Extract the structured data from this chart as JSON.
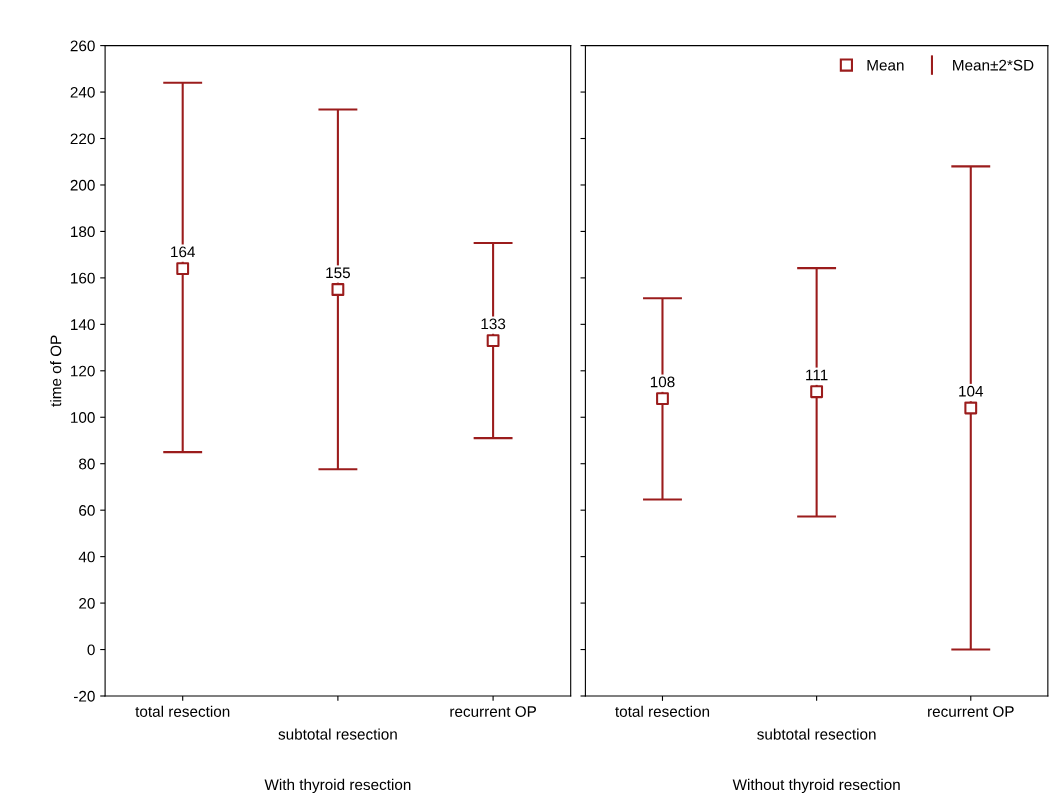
{
  "chart_data": [
    {
      "type": "scatter",
      "xlabel": "With thyroid resection",
      "ylabel": "time of OP",
      "categories": [
        "total resection",
        "subtotal resection",
        "recurrent OP"
      ],
      "ylim": [
        -20,
        260
      ],
      "yticks": [
        -20,
        0,
        20,
        40,
        60,
        80,
        100,
        120,
        140,
        160,
        180,
        200,
        220,
        240,
        260
      ],
      "grid": false,
      "marker": "square",
      "data_labels": true,
      "series": [
        {
          "color": "#9b1c1c",
          "values": [
            164,
            155,
            133
          ],
          "errors": [
            [
              85,
              244
            ],
            [
              77.6,
              232.5
            ],
            [
              91,
              175
            ]
          ]
        }
      ]
    },
    {
      "type": "scatter",
      "xlabel": "Without thyroid resection",
      "categories": [
        "total resection",
        "subtotal resection",
        "recurrent OP"
      ],
      "ylim": [
        -20,
        260
      ],
      "yticks": [
        -20,
        0,
        20,
        40,
        60,
        80,
        100,
        120,
        140,
        160,
        180,
        200,
        220,
        240,
        260
      ],
      "tick_labels": "x",
      "grid": false,
      "marker": "square",
      "data_labels": true,
      "legend": "top right",
      "annotations": [
        "Mean±2*SD"
      ],
      "series": [
        {
          "name": "Mean",
          "color": "#9b1c1c",
          "values": [
            108,
            111,
            104
          ],
          "errors": [
            [
              64.6,
              151.2
            ],
            [
              57.3,
              164.2
            ],
            [
              0,
              208
            ]
          ]
        }
      ]
    }
  ]
}
